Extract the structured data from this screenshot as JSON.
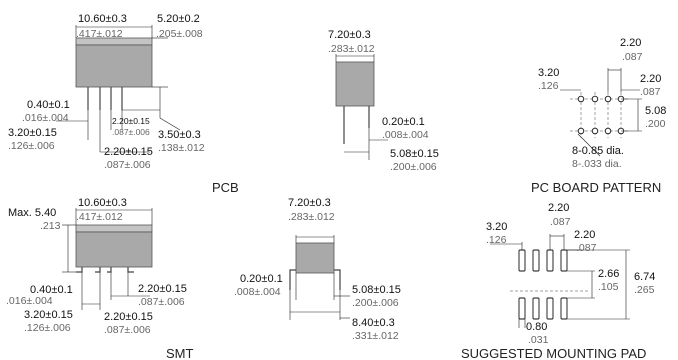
{
  "pcb": {
    "dim_length_mm": "10.60±0.3",
    "dim_length_in": ".417±.012",
    "dim_height_mm": "5.20±0.2",
    "dim_height_in": ".205±.008",
    "dim_pin_mm": "0.40±0.1",
    "dim_pin_in": ".016±.004",
    "dim_pitch_inner_mm": "2.20±0.15",
    "dim_pitch_inner_in": ".087±.006",
    "dim_pitch_left_mm": "3.20±0.15",
    "dim_pitch_left_in": ".126±.006",
    "dim_pitch_mm": "2.20±0.15",
    "dim_pitch_in": ".087±.006",
    "dim_lead_mm": "3.50±0.3",
    "dim_lead_in": ".138±.012",
    "label": "PCB",
    "side": {
      "dim_width_mm": "7.20±0.3",
      "dim_width_in": ".283±.012",
      "dim_pin_mm": "0.20±0.1",
      "dim_pin_in": ".008±.004",
      "dim_row_mm": "5.08±0.15",
      "dim_row_in": ".200±.006"
    }
  },
  "pattern": {
    "dim_top_mm": "2.20",
    "dim_top_in": ".087",
    "dim_left_mm": "3.20",
    "dim_left_in": ".126",
    "dim_right_mm": "2.20",
    "dim_right_in": ".087",
    "dim_row_mm": "5.08",
    "dim_row_in": ".200",
    "hole_mm": "8-0.85 dia.",
    "hole_in": "8-.033 dia.",
    "label": "PC BOARD PATTERN"
  },
  "smt": {
    "dim_max_mm": "Max. 5.40",
    "dim_max_in": ".213",
    "dim_length_mm": "10.60±0.3",
    "dim_length_in": ".417±.012",
    "dim_pin_mm": "0.40±0.1",
    "dim_pin_in": ".016±.004",
    "dim_pitch_right_mm": "2.20±0.15",
    "dim_pitch_right_in": ".087±.006",
    "dim_pitch_left_mm": "3.20±0.15",
    "dim_pitch_left_in": ".126±.006",
    "dim_pitch_mm": "2.20±0.15",
    "dim_pitch_in": ".087±.006",
    "label": "SMT",
    "side": {
      "dim_width_mm": "7.20±0.3",
      "dim_width_in": ".283±.012",
      "dim_pin_mm": "0.20±0.1",
      "dim_pin_in": ".008±.004",
      "dim_row_mm": "5.08±0.15",
      "dim_row_in": ".200±.006",
      "dim_span_mm": "8.40±0.3",
      "dim_span_in": ".331±.012"
    }
  },
  "pad": {
    "dim_top_mm": "2.20",
    "dim_top_in": ".087",
    "dim_left_mm": "3.20",
    "dim_left_in": ".126",
    "dim_right_mm": "2.20",
    "dim_right_in": ".087",
    "dim_inner_mm": "2.66",
    "dim_inner_in": ".105",
    "dim_outer_mm": "6.74",
    "dim_outer_in": ".265",
    "dim_pad_mm": "0.80",
    "dim_pad_in": ".031",
    "label": "SUGGESTED MOUNTING PAD"
  }
}
